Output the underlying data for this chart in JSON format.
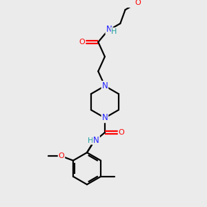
{
  "background_color": "#ebebeb",
  "atom_colors": {
    "C": "#000000",
    "N": "#2020ff",
    "O": "#ff0000",
    "H": "#20a0a0"
  },
  "figsize": [
    3.0,
    3.0
  ],
  "dpi": 100,
  "line_width": 1.6,
  "font_size": 8.0
}
